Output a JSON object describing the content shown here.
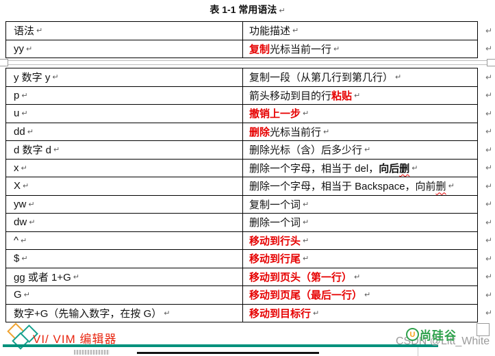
{
  "title": "表 1-1 常用语法",
  "glyphs": {
    "return_mark": "↵"
  },
  "colors": {
    "keyword_red": "#e60000",
    "border_black": "#000000",
    "teal_rule": "#00917c",
    "brand_green": "#2fa14c",
    "brand_orange": "#f7a11a",
    "logo_orange": "#f0a330",
    "logo_teal": "#14a08d",
    "watermark_gray": "#9b9b9b"
  },
  "table": {
    "column_headers": [
      "语法",
      "功能描述"
    ],
    "part1_rows": [
      {
        "syntax": "语法",
        "desc": [
          {
            "t": "功能描述",
            "s": "n"
          }
        ]
      },
      {
        "syntax": "yy",
        "desc": [
          {
            "t": "复制",
            "s": "r"
          },
          {
            "t": "光标当前一行",
            "s": "n"
          }
        ]
      }
    ],
    "part2_rows": [
      {
        "syntax": "y 数字 y ",
        "desc": [
          {
            "t": "复制一段（从第几行到第几行）",
            "s": "n"
          }
        ]
      },
      {
        "syntax": "p",
        "desc": [
          {
            "t": "箭头移动到目的行",
            "s": "n"
          },
          {
            "t": "粘贴",
            "s": "r"
          }
        ]
      },
      {
        "syntax": "u",
        "desc": [
          {
            "t": "撤销上一步",
            "s": "r"
          }
        ]
      },
      {
        "syntax": "dd",
        "desc": [
          {
            "t": "删除",
            "s": "r"
          },
          {
            "t": "光标当前行",
            "s": "n"
          }
        ]
      },
      {
        "syntax": "d 数字 d",
        "desc": [
          {
            "t": "删除光标（含）后多少行",
            "s": "n"
          }
        ]
      },
      {
        "syntax": "x",
        "desc": [
          {
            "t": "删除一个字母，相当于 del，",
            "s": "n"
          },
          {
            "t": "向后",
            "s": "b"
          },
          {
            "t": "删",
            "s": "bw"
          }
        ]
      },
      {
        "syntax": "X",
        "desc": [
          {
            "t": "删除一个字母，相当于 Backspace，向前",
            "s": "n"
          },
          {
            "t": "删",
            "s": "w"
          }
        ]
      },
      {
        "syntax": "yw",
        "desc": [
          {
            "t": "复制一个词",
            "s": "n"
          }
        ]
      },
      {
        "syntax": "dw",
        "desc": [
          {
            "t": "删除一个词",
            "s": "n"
          }
        ]
      },
      {
        "syntax": "^",
        "desc": [
          {
            "t": "移动到行头",
            "s": "r"
          }
        ]
      },
      {
        "syntax": "$",
        "desc": [
          {
            "t": "移动到行尾",
            "s": "r"
          }
        ]
      },
      {
        "syntax": "gg 或者 1+G",
        "desc": [
          {
            "t": "移动到页头（第一行）",
            "s": "r"
          }
        ]
      },
      {
        "syntax": "G",
        "desc": [
          {
            "t": "移动到页尾（最后一行）",
            "s": "r"
          }
        ]
      },
      {
        "syntax": "数字+G（先输入数字，在按 G）",
        "desc": [
          {
            "t": "移动到目标行",
            "s": "r"
          }
        ]
      }
    ]
  },
  "footer": {
    "heading": "VI/ VIM 编辑器",
    "brand": "尚硅谷",
    "brand_initial": "U",
    "watermark": "CSDN @Litt_White"
  }
}
